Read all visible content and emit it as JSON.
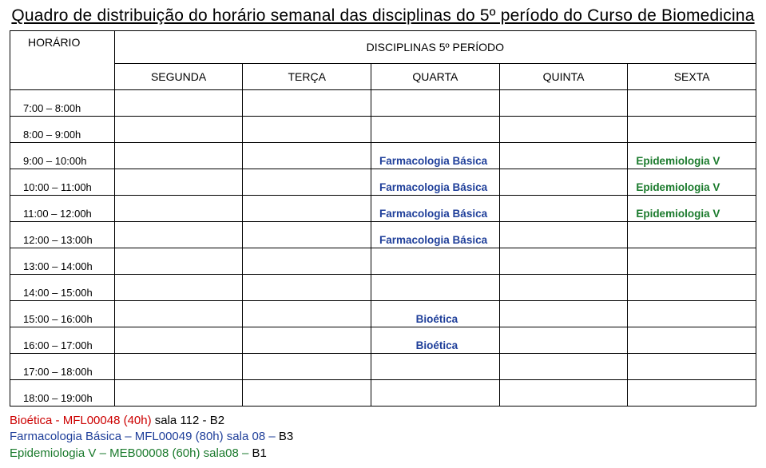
{
  "title": "Quadro de distribuição do horário semanal das disciplinas do 5º período do Curso de Biomedicina",
  "header": {
    "horario": "HORÁRIO",
    "disciplinas": "DISCIPLINAS  5º  PERÍODO",
    "days": [
      "SEGUNDA",
      "TERÇA",
      "QUARTA",
      "QUINTA",
      "SEXTA"
    ]
  },
  "colors": {
    "farmacologia": "#1f3f9a",
    "epidemiologia": "#1a7a2c",
    "bioetica_cell": "#1f3f9a",
    "footer_red": "#cc0000",
    "footer_navy": "#1f3f9a",
    "footer_green": "#1a7a2c",
    "black": "#000000"
  },
  "times": [
    "7:00 – 8:00h",
    "8:00 – 9:00h",
    "9:00 – 10:00h",
    "10:00 – 11:00h",
    "11:00 – 12:00h",
    "12:00 – 13:00h",
    "13:00 – 14:00h",
    "14:00 – 15:00h",
    "15:00 – 16:00h",
    "16:00 – 17:00h",
    "17:00 – 18:00h",
    "18:00 – 19:00h"
  ],
  "cells": {
    "farmacologia": "Farmacologia Básica",
    "epidemiologia": "Epidemiologia V",
    "bioetica": "Bioética"
  },
  "footer": {
    "line1": {
      "a": "Bioética  -  MFL00048 (40h)",
      "b": "    sala 112  -  ",
      "c": "B2"
    },
    "line2": {
      "a": "Farmacologia Básica – MFL00049 (80h) sala 08 – ",
      "b": "B3"
    },
    "line3": {
      "a": "Epidemiologia V – MEB00008 (60h) sala08 – ",
      "b": "B1"
    }
  }
}
